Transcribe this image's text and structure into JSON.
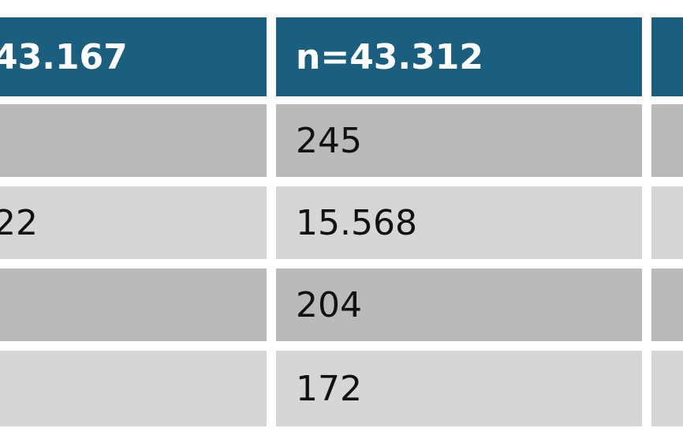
{
  "table": {
    "header": [
      "43.167",
      "n=43.312"
    ],
    "rows": [
      [
        "",
        "245"
      ],
      [
        "22",
        "15.568"
      ],
      [
        "",
        "204"
      ],
      [
        "",
        "172"
      ]
    ]
  }
}
